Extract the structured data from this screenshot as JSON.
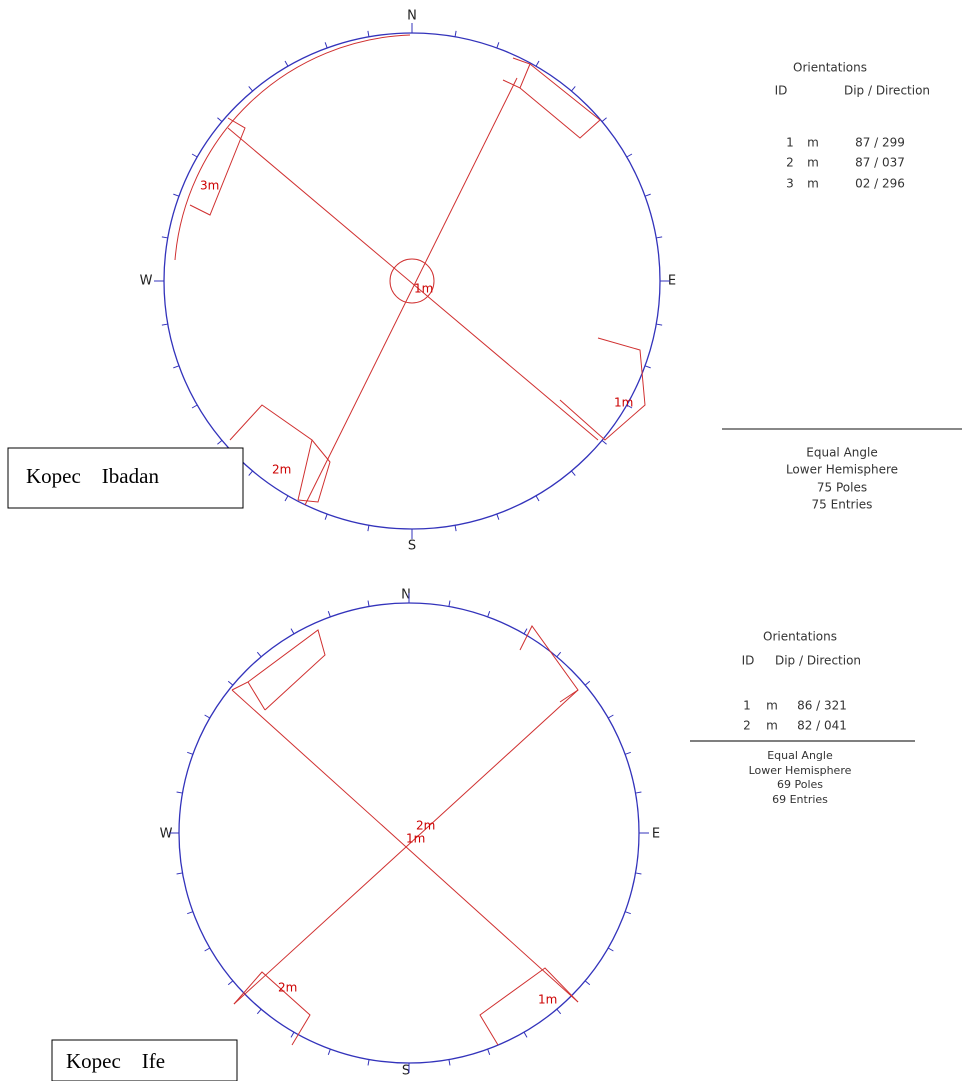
{
  "plots": [
    {
      "compass": {
        "n": "N",
        "w": "W",
        "e": "E",
        "s": "S"
      },
      "label": "Kopec    Ibadan",
      "plane_labels": [
        "1m",
        "2m",
        "3m"
      ],
      "orientations": {
        "title": "Orientations",
        "headers": [
          "ID",
          "Dip / Direction"
        ],
        "rows": [
          [
            "1",
            "m",
            "87 / 299"
          ],
          [
            "2",
            "m",
            "87 / 037"
          ],
          [
            "3",
            "m",
            "02 / 296"
          ]
        ]
      },
      "info": [
        "Equal Angle",
        "Lower Hemisphere",
        "75 Poles",
        "75 Entries"
      ]
    },
    {
      "compass": {
        "n": "N",
        "w": "W",
        "e": "E",
        "s": "S"
      },
      "label": "Kopec    Ife",
      "plane_labels": [
        "1m",
        "2m"
      ],
      "orientations": {
        "title": "Orientations",
        "headers": [
          "ID",
          "Dip / Direction"
        ],
        "rows": [
          [
            "1",
            "m",
            "86 / 321"
          ],
          [
            "2",
            "m",
            "82 / 041"
          ]
        ]
      },
      "info": [
        "Equal Angle",
        "Lower Hemisphere",
        "69 Poles",
        "69 Entries"
      ]
    }
  ]
}
